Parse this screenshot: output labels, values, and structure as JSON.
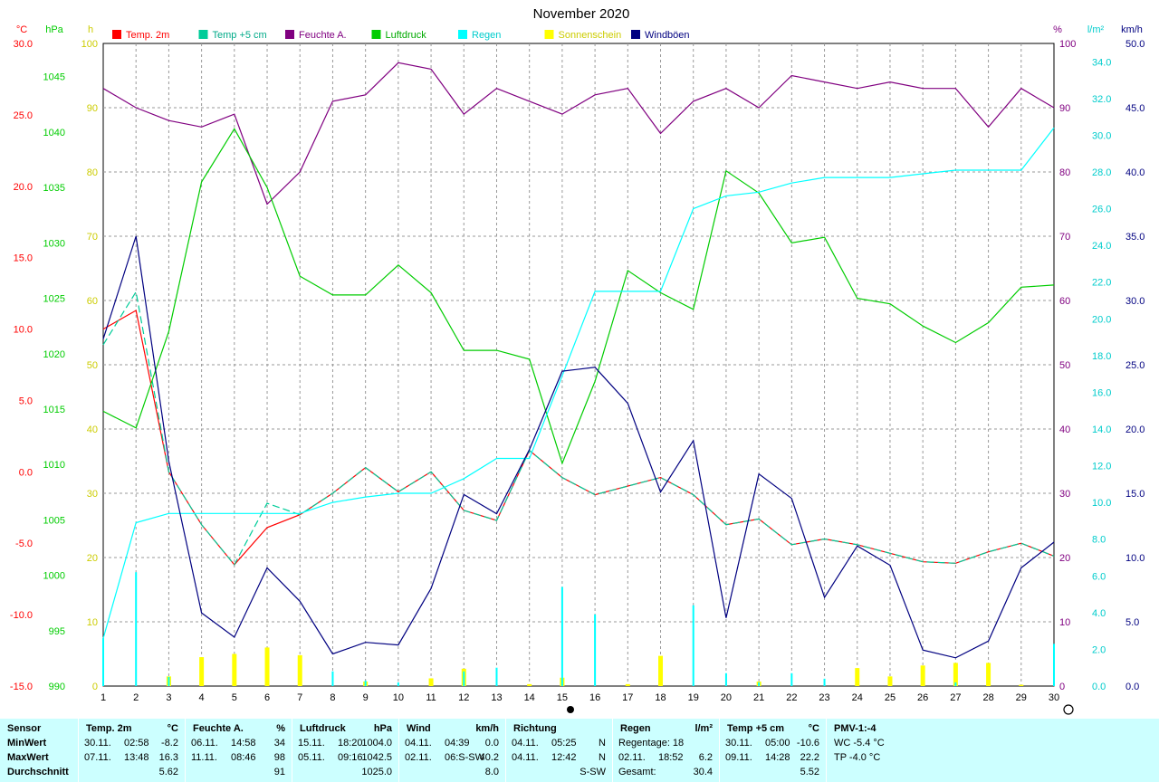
{
  "chart_data": {
    "type": "line",
    "title": "November 2020",
    "x": [
      1,
      2,
      3,
      4,
      5,
      6,
      7,
      8,
      9,
      10,
      11,
      12,
      13,
      14,
      15,
      16,
      17,
      18,
      19,
      20,
      21,
      22,
      23,
      24,
      25,
      26,
      27,
      28,
      29,
      30
    ],
    "xlim": [
      1,
      30
    ],
    "axes": {
      "temp": {
        "unit": "°C",
        "range": [
          -15,
          30
        ],
        "ticks": [
          "30.0",
          "25.0",
          "20.0",
          "15.0",
          "10.0",
          "5.0",
          "0.0",
          "-5.0",
          "-10.0",
          "-15.0"
        ],
        "color": "#ff0000"
      },
      "pressure": {
        "unit": "hPa",
        "range": [
          990,
          1048
        ],
        "ticks": [
          "1045",
          "1040",
          "1035",
          "1030",
          "1025",
          "1020",
          "1015",
          "1010",
          "1005",
          "1000",
          "995",
          "990"
        ],
        "color": "#00cc00"
      },
      "sun": {
        "unit": "h",
        "range": [
          0,
          100
        ],
        "ticks": [
          "100",
          "90",
          "80",
          "70",
          "60",
          "50",
          "40",
          "30",
          "20",
          "10",
          "0"
        ],
        "color": "#cccc00"
      },
      "humidity": {
        "unit": "%",
        "range": [
          0,
          100
        ],
        "ticks": [
          "100",
          "90",
          "80",
          "70",
          "60",
          "50",
          "40",
          "30",
          "20",
          "10",
          "0"
        ],
        "color": "#800080"
      },
      "rain": {
        "unit": "l/m²",
        "range": [
          0,
          35
        ],
        "ticks": [
          "34.0",
          "32.0",
          "30.0",
          "28.0",
          "26.0",
          "24.0",
          "22.0",
          "20.0",
          "18.0",
          "16.0",
          "14.0",
          "12.0",
          "10.0",
          "8.0",
          "6.0",
          "4.0",
          "2.0",
          "0.0"
        ],
        "color": "#00cccc"
      },
      "wind": {
        "unit": "km/h",
        "range": [
          0,
          50
        ],
        "ticks": [
          "50.0",
          "45.0",
          "40.0",
          "35.0",
          "30.0",
          "25.0",
          "20.0",
          "15.0",
          "10.0",
          "5.0",
          "0.0"
        ],
        "color": "#000080"
      }
    },
    "legend": [
      {
        "name": "Temp. 2m",
        "color": "#ff0000"
      },
      {
        "name": "Temp +5 cm",
        "color": "#00cc99"
      },
      {
        "name": "Feuchte A.",
        "color": "#800080"
      },
      {
        "name": "Luftdruck",
        "color": "#00cc00"
      },
      {
        "name": "Regen",
        "color": "#00ffff"
      },
      {
        "name": "Sonnenschein",
        "color": "#ffff00"
      },
      {
        "name": "Windböen",
        "color": "#000080"
      }
    ],
    "series": [
      {
        "name": "Temp. 2m",
        "axis": "temp",
        "color": "#ff0000",
        "style": "solid",
        "values": [
          10.0,
          11.3,
          0.0,
          -3.7,
          -6.5,
          -3.9,
          -3.0,
          -1.5,
          0.3,
          -1.4,
          0.0,
          -2.7,
          -3.4,
          1.5,
          -0.4,
          -1.6,
          -1.0,
          -0.4,
          -1.6,
          -3.7,
          -3.3,
          -5.1,
          -4.7,
          -5.1,
          -5.7,
          -6.3,
          -6.4,
          -5.6,
          -5.0,
          -5.9
        ]
      },
      {
        "name": "Temp +5 cm",
        "axis": "temp",
        "color": "#00cc99",
        "style": "dashed",
        "values": [
          8.9,
          12.6,
          0.0,
          -3.7,
          -6.5,
          -2.2,
          -3.0,
          -1.5,
          0.3,
          -1.4,
          0.0,
          -2.7,
          -3.4,
          1.5,
          -0.4,
          -1.6,
          -1.0,
          -0.4,
          -1.6,
          -3.7,
          -3.3,
          -5.1,
          -4.7,
          -5.1,
          -5.7,
          -6.3,
          -6.4,
          -5.6,
          -5.0,
          -5.9
        ]
      },
      {
        "name": "Feuchte A.",
        "axis": "humidity",
        "color": "#800080",
        "style": "solid",
        "values": [
          93,
          90,
          88,
          87,
          89,
          75,
          80,
          91,
          92,
          97,
          96,
          89,
          93,
          91,
          89,
          92,
          93,
          86,
          91,
          93,
          90,
          95,
          94,
          93,
          94,
          93,
          93,
          87,
          93,
          90
        ]
      },
      {
        "name": "Luftdruck",
        "axis": "pressure",
        "color": "#00cc00",
        "style": "solid",
        "values": [
          1014.8,
          1013.3,
          1022.0,
          1035.5,
          1040.3,
          1035.0,
          1027.0,
          1025.3,
          1025.3,
          1028.0,
          1025.5,
          1020.3,
          1020.3,
          1019.5,
          1010.1,
          1017.5,
          1027.5,
          1025.5,
          1024.0,
          1036.5,
          1034.5,
          1030.0,
          1030.5,
          1025.0,
          1024.5,
          1022.5,
          1021.0,
          1022.8,
          1026.0,
          1026.2
        ]
      },
      {
        "name": "Regen",
        "axis": "rain",
        "color": "#00ffff",
        "style": "solid",
        "values": [
          2.6,
          8.9,
          9.4,
          9.4,
          9.4,
          9.4,
          9.4,
          10.0,
          10.3,
          10.5,
          10.5,
          11.3,
          12.4,
          12.4,
          16.9,
          21.5,
          21.5,
          21.5,
          26.0,
          26.7,
          26.9,
          27.4,
          27.7,
          27.7,
          27.7,
          27.9,
          28.1,
          28.1,
          28.1,
          30.4
        ]
      },
      {
        "name": "Windböen",
        "axis": "wind",
        "color": "#000080",
        "style": "solid",
        "values": [
          27.0,
          35.0,
          17.5,
          5.7,
          3.8,
          9.2,
          6.6,
          2.5,
          3.4,
          3.2,
          7.6,
          14.9,
          13.4,
          18.4,
          24.5,
          24.8,
          22.0,
          15.1,
          19.1,
          5.3,
          16.5,
          14.6,
          6.9,
          10.9,
          9.4,
          2.8,
          2.2,
          3.5,
          9.2,
          11.2
        ]
      }
    ],
    "bars": [
      {
        "name": "Sonnenschein",
        "axis": "sun",
        "color": "#ffff00",
        "values": [
          0,
          0,
          1.5,
          4.5,
          5,
          6,
          4.8,
          0,
          0.7,
          0,
          1.2,
          2.7,
          0,
          0.3,
          1.3,
          0,
          0.3,
          4.7,
          0,
          0,
          0.7,
          0,
          0,
          2.8,
          1.5,
          3.2,
          3.6,
          3.6,
          0.2,
          0
        ]
      },
      {
        "name": "Regen",
        "axis": "rain",
        "color": "#00ffff",
        "values": [
          2.6,
          6.2,
          0.5,
          0,
          0,
          0,
          0,
          0.8,
          0.3,
          0.2,
          0,
          0.8,
          1.0,
          0,
          5.4,
          3.9,
          0,
          0,
          4.4,
          0.7,
          0.2,
          0.7,
          0.4,
          0,
          0,
          0,
          0.2,
          0,
          0,
          2.3
        ]
      }
    ],
    "grid": true
  },
  "stats": {
    "columns": [
      {
        "title": "Sensor",
        "unit": "",
        "rows": [
          "MinWert",
          "MaxWert",
          "Durchschnitt"
        ]
      },
      {
        "title": "Temp. 2m",
        "unit": "°C",
        "rows": [
          [
            "30.11.",
            "02:58",
            "-8.2"
          ],
          [
            "07.11.",
            "13:48",
            "16.3"
          ],
          [
            "",
            "",
            "5.62"
          ]
        ]
      },
      {
        "title": "Feuchte A.",
        "unit": "%",
        "rows": [
          [
            "06.11.",
            "14:58",
            "34"
          ],
          [
            "11.11.",
            "08:46",
            "98"
          ],
          [
            "",
            "",
            "91"
          ]
        ]
      },
      {
        "title": "Luftdruck",
        "unit": "hPa",
        "rows": [
          [
            "15.11.",
            "18:20",
            "1004.0"
          ],
          [
            "05.11.",
            "09:16",
            "1042.5"
          ],
          [
            "",
            "",
            "1025.0"
          ]
        ]
      },
      {
        "title": "Wind",
        "unit": "km/h",
        "rows": [
          [
            "04.11.",
            "04:39",
            "0.0"
          ],
          [
            "02.11.",
            "06:S-SW",
            "40.2"
          ],
          [
            "",
            "",
            "8.0"
          ]
        ]
      },
      {
        "title": "Richtung",
        "unit": "",
        "rows": [
          [
            "04.11.",
            "05:25",
            "N"
          ],
          [
            "04.11.",
            "12:42",
            "N"
          ],
          [
            "",
            "",
            "S-SW"
          ]
        ]
      },
      {
        "title": "Regen",
        "unit": "l/m²",
        "rows": [
          [
            "Regentage: 18",
            "",
            ""
          ],
          [
            "02.11.",
            "18:52",
            "6.2"
          ],
          [
            "Gesamt:",
            "",
            "30.4"
          ]
        ]
      },
      {
        "title": "Temp +5 cm",
        "unit": "°C",
        "rows": [
          [
            "30.11.",
            "05:00",
            "-10.6"
          ],
          [
            "09.11.",
            "14:28",
            "22.2"
          ],
          [
            "",
            "",
            "5.52"
          ]
        ]
      },
      {
        "title": "PMV-1:-4",
        "unit": "",
        "rows": [
          "WC -5.4 °C",
          "TP -4.0 °C",
          ""
        ]
      }
    ]
  }
}
